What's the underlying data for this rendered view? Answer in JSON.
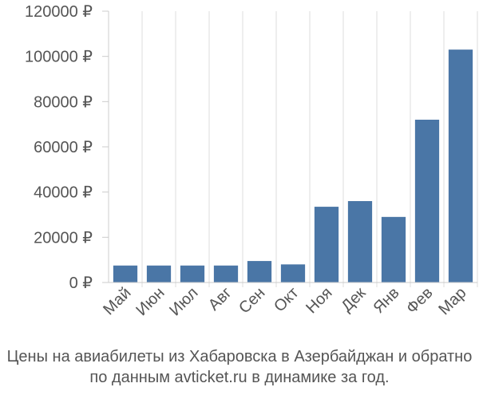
{
  "chart_data": {
    "type": "bar",
    "categories": [
      "Май",
      "Июн",
      "Июл",
      "Авг",
      "Сен",
      "Окт",
      "Ноя",
      "Дек",
      "Янв",
      "Фев",
      "Мар"
    ],
    "values": [
      7500,
      7500,
      7500,
      7500,
      9500,
      8000,
      33500,
      36000,
      29000,
      72000,
      103000
    ],
    "y_ticks": [
      "0 ₽",
      "20000 ₽",
      "40000 ₽",
      "60000 ₽",
      "80000 ₽",
      "100000 ₽",
      "120000 ₽"
    ],
    "ylim": [
      0,
      120000
    ],
    "grid": "vertical",
    "bar_color": "#4a76a6",
    "title": "",
    "xlabel": "",
    "ylabel": ""
  },
  "caption": {
    "line1": "Цены на авиабилеты из Хабаровска в Азербайджан и обратно",
    "line2": "по данным avticket.ru в динамике за год."
  }
}
